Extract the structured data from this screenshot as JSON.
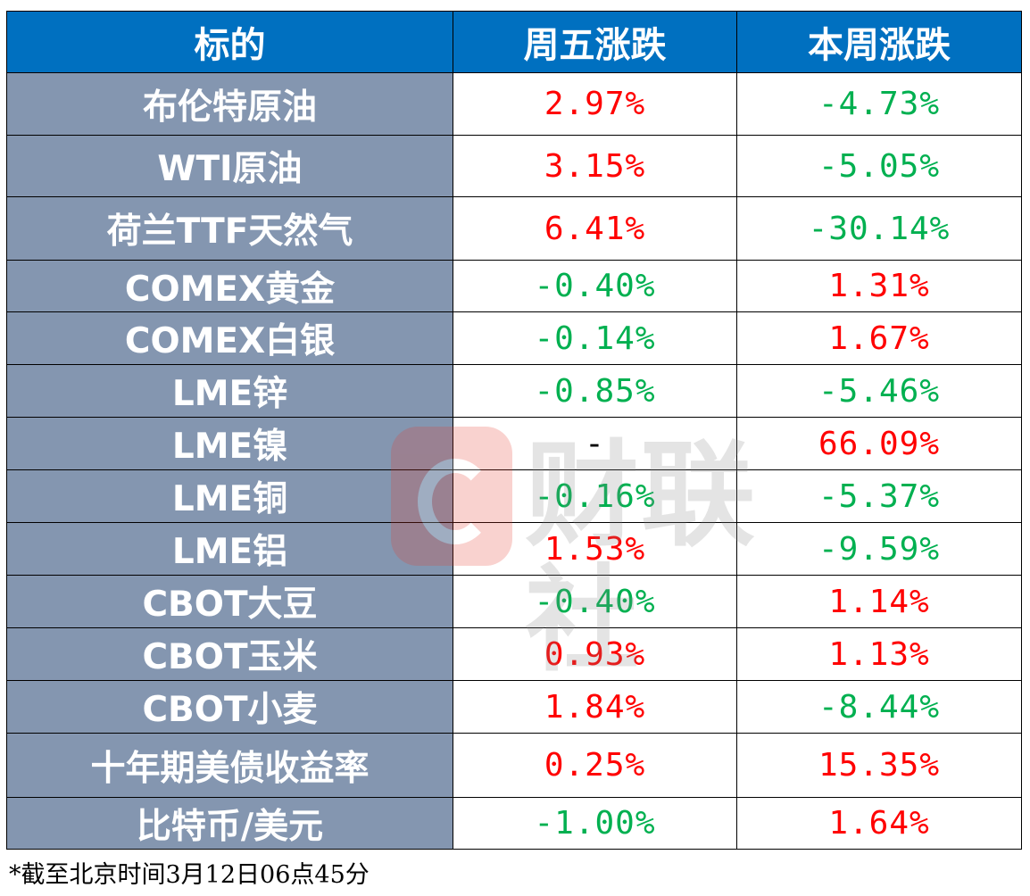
{
  "header": {
    "col_name": "标的",
    "col_friday": "周五涨跌",
    "col_week": "本周涨跌"
  },
  "rows": [
    {
      "name": "布伦特原油",
      "friday": "2.97%",
      "week": "-4.73%"
    },
    {
      "name": "WTI原油",
      "friday": "3.15%",
      "week": "-5.05%"
    },
    {
      "name": "荷兰TTF天然气",
      "friday": "6.41%",
      "week": "-30.14%"
    },
    {
      "name": "COMEX黄金",
      "friday": "-0.40%",
      "week": "1.31%"
    },
    {
      "name": "COMEX白银",
      "friday": "-0.14%",
      "week": "1.67%"
    },
    {
      "name": "LME锌",
      "friday": "-0.85%",
      "week": "-5.46%"
    },
    {
      "name": "LME镍",
      "friday": "-",
      "week": "66.09%"
    },
    {
      "name": "LME铜",
      "friday": "-0.16%",
      "week": "-5.37%"
    },
    {
      "name": "LME铝",
      "friday": "1.53%",
      "week": "-9.59%"
    },
    {
      "name": "CBOT大豆",
      "friday": "-0.40%",
      "week": "1.14%"
    },
    {
      "name": "CBOT玉米",
      "friday": "0.93%",
      "week": "1.13%"
    },
    {
      "name": "CBOT小麦",
      "friday": "1.84%",
      "week": "-8.44%"
    },
    {
      "name": "十年期美债收益率",
      "friday": "0.25%",
      "week": "15.35%"
    },
    {
      "name": "比特币/美元",
      "friday": "-1.00%",
      "week": "1.64%"
    }
  ],
  "footnote": "*截至北京时间3月12日06点45分",
  "watermark": {
    "text": "财联社",
    "logo_icon": "cls-logo-icon"
  },
  "colors": {
    "header_bg": "#0070c0",
    "name_bg": "#8496b0",
    "up": "#ff0000",
    "down": "#00b050"
  }
}
